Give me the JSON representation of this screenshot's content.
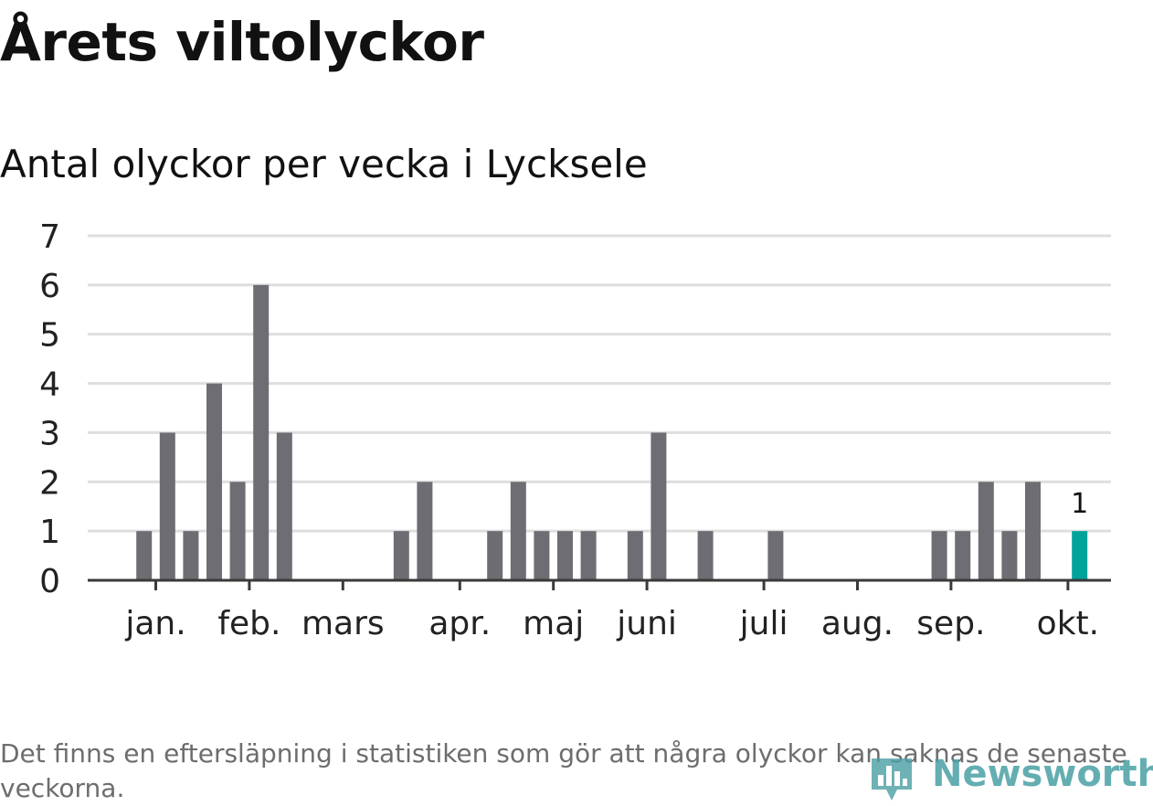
{
  "chart_data": {
    "type": "bar",
    "title": "Årets viltolyckor",
    "subtitle": "Antal olyckor per vecka i Lycksele",
    "ylim": [
      0,
      7
    ],
    "yticks": [
      0,
      1,
      2,
      3,
      4,
      5,
      6,
      7
    ],
    "weeks": 43,
    "values": [
      0,
      0,
      1,
      3,
      1,
      4,
      2,
      6,
      3,
      0,
      0,
      0,
      0,
      1,
      2,
      0,
      0,
      1,
      2,
      1,
      1,
      1,
      0,
      1,
      3,
      0,
      1,
      0,
      0,
      1,
      0,
      0,
      0,
      0,
      0,
      0,
      1,
      1,
      2,
      1,
      2,
      0,
      1
    ],
    "highlight_index": 42,
    "highlight_label": "1",
    "month_labels": [
      {
        "label": "jan.",
        "week": 2.5
      },
      {
        "label": "feb.",
        "week": 6.5
      },
      {
        "label": "mars",
        "week": 10.5
      },
      {
        "label": "apr.",
        "week": 15.5
      },
      {
        "label": "maj",
        "week": 19.5
      },
      {
        "label": "juni",
        "week": 23.5
      },
      {
        "label": "juli",
        "week": 28.5
      },
      {
        "label": "aug.",
        "week": 32.5
      },
      {
        "label": "sep.",
        "week": 36.5
      },
      {
        "label": "okt.",
        "week": 41.5
      }
    ],
    "colors": {
      "bar": "#6e6d73",
      "highlight": "#00a39a",
      "grid": "#dedede",
      "axis": "#3a3a3a"
    },
    "footnote": "Det finns en eftersläpning i statistiken som gör att några olyckor kan saknas de senaste veckorna."
  },
  "branding": {
    "logo_text": "Newsworthy",
    "logo_icon": "chart-pin-icon"
  }
}
